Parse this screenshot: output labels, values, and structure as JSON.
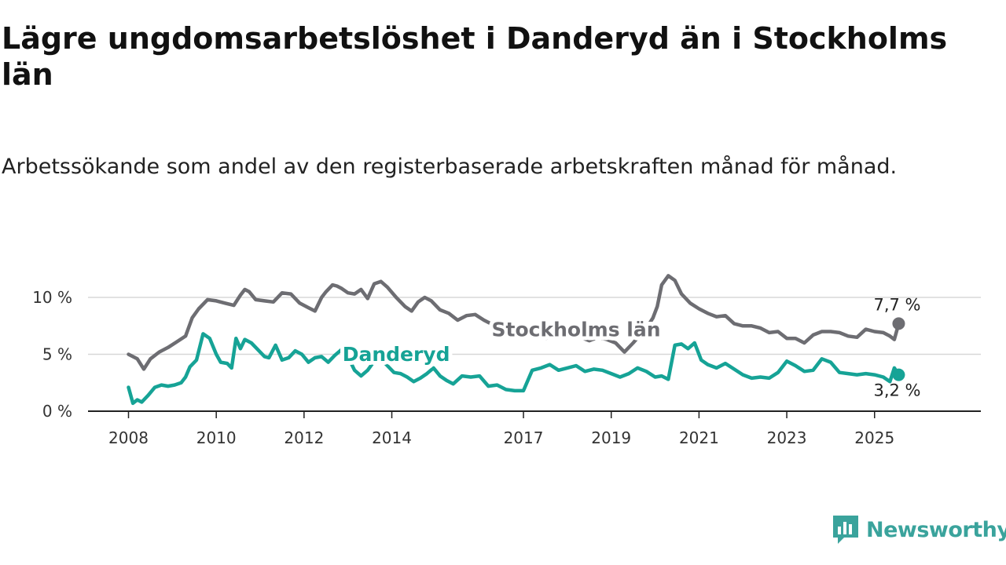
{
  "title": "Lägre ungdomsarbetslöshet i Danderyd än i Stockholms län",
  "subtitle": "Arbetssökande som andel av den registerbaserade arbetskraften månad för månad.",
  "brand": {
    "name": "Newsworthy",
    "icon": "newsworthy-logo-icon",
    "color": "#3aa39c"
  },
  "chart_data": {
    "type": "line",
    "xlim": [
      2008.0,
      2026.5
    ],
    "ylim": [
      0,
      12
    ],
    "grid": true,
    "y_ticks": [
      {
        "value": 0,
        "label": "0 %"
      },
      {
        "value": 5,
        "label": "5 %"
      },
      {
        "value": 10,
        "label": "10 %"
      }
    ],
    "x_ticks": [
      {
        "value": 2008,
        "label": "2008"
      },
      {
        "value": 2010,
        "label": "2010"
      },
      {
        "value": 2012,
        "label": "2012"
      },
      {
        "value": 2014,
        "label": "2014"
      },
      {
        "value": 2017,
        "label": "2017"
      },
      {
        "value": 2019,
        "label": "2019"
      },
      {
        "value": 2021,
        "label": "2021"
      },
      {
        "value": 2023,
        "label": "2023"
      },
      {
        "value": 2025,
        "label": "2025"
      }
    ],
    "series": [
      {
        "name": "Stockholms län",
        "color": "#6d6d72",
        "end_label": "7,7 %",
        "x": [
          2008.0,
          2008.2,
          2008.35,
          2008.5,
          2008.7,
          2008.9,
          2009.1,
          2009.3,
          2009.45,
          2009.6,
          2009.8,
          2010.0,
          2010.2,
          2010.4,
          2010.55,
          2010.65,
          2010.75,
          2010.9,
          2011.1,
          2011.3,
          2011.5,
          2011.7,
          2011.9,
          2012.1,
          2012.25,
          2012.4,
          2012.5,
          2012.65,
          2012.75,
          2012.85,
          2013.0,
          2013.15,
          2013.3,
          2013.45,
          2013.6,
          2013.75,
          2013.9,
          2014.1,
          2014.3,
          2014.45,
          2014.6,
          2014.75,
          2014.9,
          2015.1,
          2015.3,
          2015.5,
          2015.7,
          2015.9,
          2016.1,
          2016.3,
          2016.5,
          2016.7,
          2016.9,
          2017.1,
          2017.3,
          2017.5,
          2017.7,
          2017.9,
          2018.1,
          2018.3,
          2018.5,
          2018.7,
          2018.9,
          2019.1,
          2019.3,
          2019.5,
          2019.7,
          2019.85,
          2019.95,
          2020.05,
          2020.15,
          2020.3,
          2020.45,
          2020.6,
          2020.8,
          2021.0,
          2021.2,
          2021.4,
          2021.6,
          2021.8,
          2022.0,
          2022.2,
          2022.4,
          2022.6,
          2022.8,
          2023.0,
          2023.2,
          2023.4,
          2023.6,
          2023.8,
          2024.0,
          2024.2,
          2024.4,
          2024.6,
          2024.8,
          2025.0,
          2025.2,
          2025.35,
          2025.45,
          2025.55
        ],
        "y": [
          5.0,
          4.6,
          3.7,
          4.6,
          5.2,
          5.6,
          6.1,
          6.6,
          8.2,
          9.0,
          9.8,
          9.7,
          9.5,
          9.3,
          10.2,
          10.7,
          10.5,
          9.8,
          9.7,
          9.6,
          10.4,
          10.3,
          9.5,
          9.1,
          8.8,
          10.0,
          10.5,
          11.1,
          11.0,
          10.8,
          10.4,
          10.3,
          10.7,
          9.9,
          11.2,
          11.4,
          10.9,
          10.0,
          9.2,
          8.8,
          9.6,
          10.0,
          9.7,
          8.9,
          8.6,
          8.0,
          8.4,
          8.5,
          8.0,
          7.6,
          7.4,
          7.0,
          6.7,
          6.9,
          6.7,
          6.4,
          6.6,
          6.8,
          6.8,
          6.5,
          6.2,
          6.5,
          6.3,
          6.0,
          5.2,
          6.0,
          6.9,
          7.6,
          8.2,
          9.2,
          11.1,
          11.9,
          11.5,
          10.3,
          9.5,
          9.0,
          8.6,
          8.3,
          8.4,
          7.7,
          7.5,
          7.5,
          7.3,
          6.9,
          7.0,
          6.4,
          6.4,
          6.0,
          6.7,
          7.0,
          7.0,
          6.9,
          6.6,
          6.5,
          7.2,
          7.0,
          6.9,
          6.6,
          6.3,
          7.7
        ]
      },
      {
        "name": "Danderyd",
        "color": "#16a396",
        "end_label": "3,2 %",
        "x": [
          2008.0,
          2008.1,
          2008.2,
          2008.3,
          2008.45,
          2008.6,
          2008.75,
          2008.9,
          2009.05,
          2009.2,
          2009.3,
          2009.4,
          2009.55,
          2009.7,
          2009.85,
          2010.0,
          2010.1,
          2010.25,
          2010.35,
          2010.45,
          2010.55,
          2010.65,
          2010.8,
          2010.95,
          2011.1,
          2011.2,
          2011.35,
          2011.5,
          2011.65,
          2011.8,
          2011.95,
          2012.1,
          2012.25,
          2012.4,
          2012.55,
          2012.7,
          2012.85,
          2013.0,
          2013.15,
          2013.3,
          2013.45,
          2013.6,
          2013.75,
          2013.9,
          2014.05,
          2014.2,
          2014.35,
          2014.5,
          2014.65,
          2014.8,
          2014.95,
          2015.1,
          2015.25,
          2015.4,
          2015.6,
          2015.8,
          2016.0,
          2016.2,
          2016.4,
          2016.6,
          2016.8,
          2017.0,
          2017.2,
          2017.4,
          2017.6,
          2017.8,
          2018.0,
          2018.2,
          2018.4,
          2018.6,
          2018.8,
          2019.0,
          2019.2,
          2019.4,
          2019.6,
          2019.8,
          2020.0,
          2020.15,
          2020.3,
          2020.45,
          2020.6,
          2020.75,
          2020.9,
          2021.05,
          2021.2,
          2021.4,
          2021.6,
          2021.8,
          2022.0,
          2022.2,
          2022.4,
          2022.6,
          2022.8,
          2023.0,
          2023.2,
          2023.4,
          2023.6,
          2023.8,
          2024.0,
          2024.2,
          2024.4,
          2024.6,
          2024.8,
          2025.0,
          2025.2,
          2025.35,
          2025.45,
          2025.55
        ],
        "y": [
          2.1,
          0.7,
          1.0,
          0.8,
          1.4,
          2.1,
          2.3,
          2.2,
          2.3,
          2.5,
          3.0,
          3.9,
          4.5,
          6.8,
          6.4,
          5.0,
          4.3,
          4.2,
          3.8,
          6.4,
          5.5,
          6.3,
          6.0,
          5.4,
          4.8,
          4.7,
          5.8,
          4.5,
          4.7,
          5.3,
          5.0,
          4.3,
          4.7,
          4.8,
          4.3,
          4.9,
          5.4,
          4.8,
          3.6,
          3.1,
          3.6,
          4.4,
          4.6,
          4.0,
          3.4,
          3.3,
          3.0,
          2.6,
          2.9,
          3.3,
          3.8,
          3.1,
          2.7,
          2.4,
          3.1,
          3.0,
          3.1,
          2.2,
          2.3,
          1.9,
          1.8,
          1.8,
          3.6,
          3.8,
          4.1,
          3.6,
          3.8,
          4.0,
          3.5,
          3.7,
          3.6,
          3.3,
          3.0,
          3.3,
          3.8,
          3.5,
          3.0,
          3.1,
          2.8,
          5.8,
          5.9,
          5.5,
          6.0,
          4.5,
          4.1,
          3.8,
          4.2,
          3.7,
          3.2,
          2.9,
          3.0,
          2.9,
          3.4,
          4.4,
          4.0,
          3.5,
          3.6,
          4.6,
          4.3,
          3.4,
          3.3,
          3.2,
          3.3,
          3.2,
          3.0,
          2.6,
          3.8,
          3.2
        ]
      }
    ],
    "annotations": [
      {
        "text": "Stockholms län",
        "series": 0,
        "x": 2018.2,
        "y": 6.6
      },
      {
        "text": "Danderyd",
        "series": 1,
        "x": 2014.1,
        "y": 4.4
      }
    ]
  }
}
